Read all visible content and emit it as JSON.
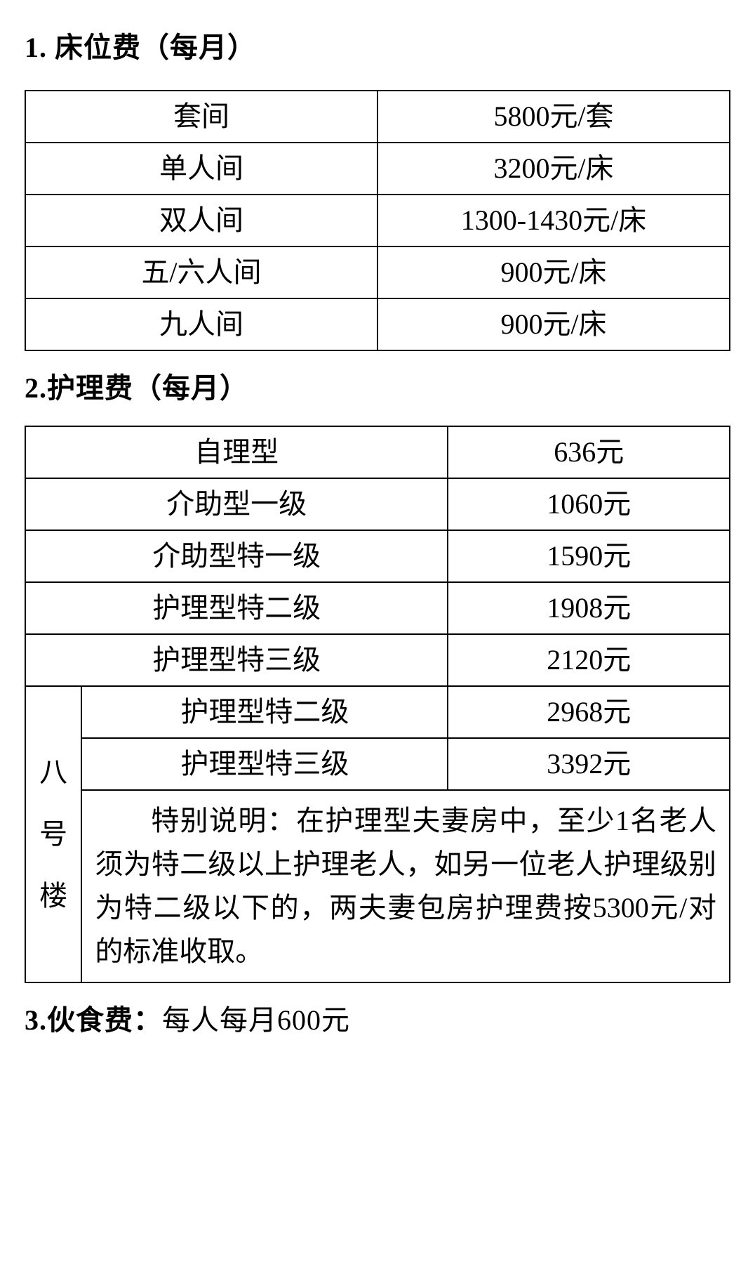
{
  "section1": {
    "heading": "1. 床位费（每月）",
    "rows": [
      {
        "type": "套间",
        "price": "5800元/套"
      },
      {
        "type": "单人间",
        "price": "3200元/床"
      },
      {
        "type": "双人间",
        "price": "1300-1430元/床"
      },
      {
        "type": "五/六人间",
        "price": "900元/床"
      },
      {
        "type": "九人间",
        "price": "900元/床"
      }
    ]
  },
  "section2": {
    "heading": "2.护理费（每月）",
    "mainRows": [
      {
        "type": "自理型",
        "price": "636元"
      },
      {
        "type": "介助型一级",
        "price": "1060元"
      },
      {
        "type": "介助型特一级",
        "price": "1590元"
      },
      {
        "type": "护理型特二级",
        "price": "1908元"
      },
      {
        "type": "护理型特三级",
        "price": "2120元"
      }
    ],
    "subLabel": "八号楼",
    "subRows": [
      {
        "type": "护理型特二级",
        "price": "2968元"
      },
      {
        "type": "护理型特三级",
        "price": "3392元"
      }
    ],
    "note": "特别说明：在护理型夫妻房中，至少1名老人须为特二级以上护理老人，如另一位老人护理级别为特二级以下的，两夫妻包房护理费按5300元/对的标准收取。"
  },
  "section3": {
    "headingBold": "3.伙食费：",
    "text": "每人每月600元"
  },
  "style": {
    "border_color": "#000000",
    "background_color": "#ffffff",
    "text_color": "#000000",
    "heading_fontsize": 40,
    "cell_fontsize": 40
  }
}
